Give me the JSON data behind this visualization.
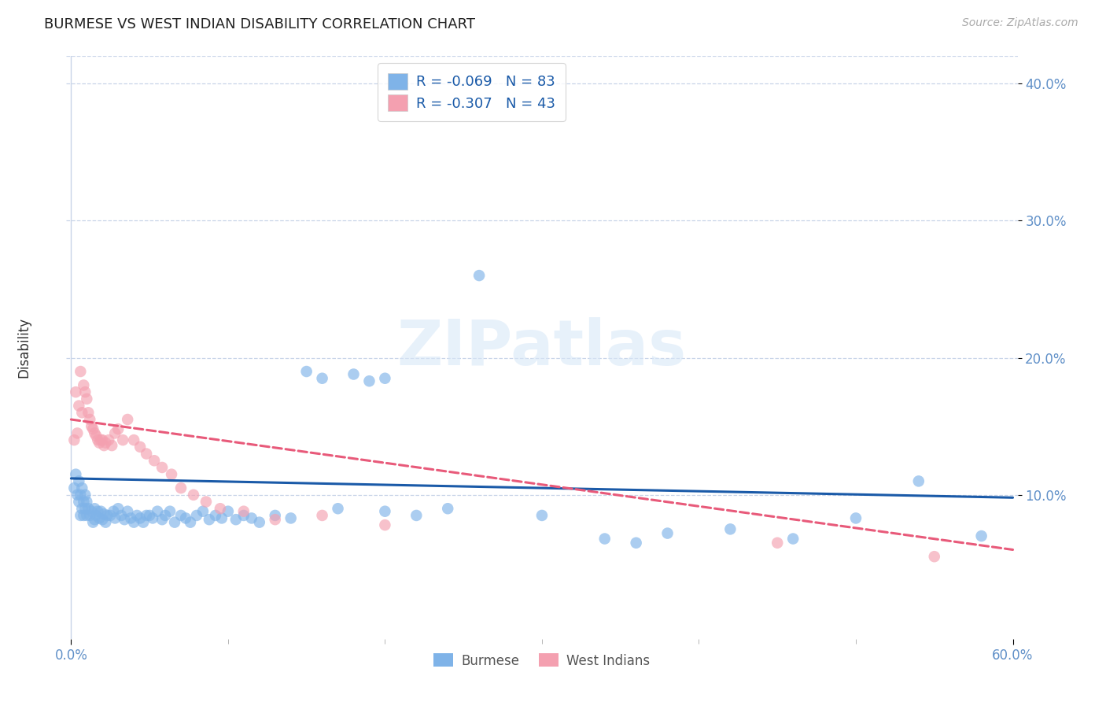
{
  "title": "BURMESE VS WEST INDIAN DISABILITY CORRELATION CHART",
  "source": "Source: ZipAtlas.com",
  "ylabel": "Disability",
  "watermark": "ZIPatlas",
  "burmese_color": "#7fb3e8",
  "west_indian_color": "#f4a0b0",
  "burmese_line_color": "#1a5aa8",
  "west_indian_line_color": "#e85a7a",
  "burmese_R": -0.069,
  "burmese_N": 83,
  "west_indian_R": -0.307,
  "west_indian_N": 43,
  "xlim": [
    0.0,
    0.6
  ],
  "ylim": [
    0.0,
    0.42
  ],
  "x_ticks_shown": [
    0.0,
    0.6
  ],
  "x_tick_labels_shown": [
    "0.0%",
    "60.0%"
  ],
  "x_ticks_minor": [
    0.1,
    0.2,
    0.3,
    0.4,
    0.5
  ],
  "y_ticks_shown": [
    0.1,
    0.2,
    0.3,
    0.4
  ],
  "y_tick_labels_shown": [
    "10.0%",
    "20.0%",
    "30.0%",
    "40.0%"
  ],
  "background_color": "#ffffff",
  "grid_color": "#c8d4e8",
  "axis_color": "#6090c8",
  "legend_color": "#1a5aa8",
  "burmese_scatter_x": [
    0.002,
    0.003,
    0.004,
    0.005,
    0.005,
    0.006,
    0.006,
    0.007,
    0.007,
    0.008,
    0.008,
    0.009,
    0.009,
    0.01,
    0.01,
    0.011,
    0.012,
    0.013,
    0.014,
    0.015,
    0.015,
    0.016,
    0.017,
    0.018,
    0.019,
    0.02,
    0.021,
    0.022,
    0.023,
    0.025,
    0.027,
    0.028,
    0.03,
    0.032,
    0.034,
    0.036,
    0.038,
    0.04,
    0.042,
    0.044,
    0.046,
    0.048,
    0.05,
    0.052,
    0.055,
    0.058,
    0.06,
    0.063,
    0.066,
    0.07,
    0.073,
    0.076,
    0.08,
    0.084,
    0.088,
    0.092,
    0.096,
    0.1,
    0.105,
    0.11,
    0.115,
    0.12,
    0.13,
    0.14,
    0.15,
    0.16,
    0.17,
    0.18,
    0.19,
    0.2,
    0.22,
    0.24,
    0.26,
    0.3,
    0.34,
    0.38,
    0.42,
    0.46,
    0.5,
    0.54,
    0.58,
    0.2,
    0.36
  ],
  "burmese_scatter_y": [
    0.105,
    0.115,
    0.1,
    0.095,
    0.11,
    0.085,
    0.1,
    0.09,
    0.105,
    0.095,
    0.085,
    0.1,
    0.09,
    0.085,
    0.095,
    0.09,
    0.085,
    0.088,
    0.08,
    0.09,
    0.082,
    0.085,
    0.088,
    0.083,
    0.088,
    0.082,
    0.086,
    0.08,
    0.085,
    0.085,
    0.088,
    0.083,
    0.09,
    0.085,
    0.082,
    0.088,
    0.083,
    0.08,
    0.085,
    0.083,
    0.08,
    0.085,
    0.085,
    0.083,
    0.088,
    0.082,
    0.085,
    0.088,
    0.08,
    0.085,
    0.083,
    0.08,
    0.085,
    0.088,
    0.082,
    0.085,
    0.083,
    0.088,
    0.082,
    0.085,
    0.083,
    0.08,
    0.085,
    0.083,
    0.19,
    0.185,
    0.09,
    0.188,
    0.183,
    0.088,
    0.085,
    0.09,
    0.26,
    0.085,
    0.068,
    0.072,
    0.075,
    0.068,
    0.083,
    0.11,
    0.07,
    0.185,
    0.065
  ],
  "west_indian_scatter_x": [
    0.002,
    0.003,
    0.004,
    0.005,
    0.006,
    0.007,
    0.008,
    0.009,
    0.01,
    0.011,
    0.012,
    0.013,
    0.014,
    0.015,
    0.016,
    0.017,
    0.018,
    0.019,
    0.02,
    0.021,
    0.022,
    0.024,
    0.026,
    0.028,
    0.03,
    0.033,
    0.036,
    0.04,
    0.044,
    0.048,
    0.053,
    0.058,
    0.064,
    0.07,
    0.078,
    0.086,
    0.095,
    0.11,
    0.13,
    0.16,
    0.2,
    0.45,
    0.55
  ],
  "west_indian_scatter_y": [
    0.14,
    0.175,
    0.145,
    0.165,
    0.19,
    0.16,
    0.18,
    0.175,
    0.17,
    0.16,
    0.155,
    0.15,
    0.148,
    0.145,
    0.143,
    0.14,
    0.138,
    0.14,
    0.14,
    0.136,
    0.138,
    0.14,
    0.136,
    0.145,
    0.148,
    0.14,
    0.155,
    0.14,
    0.135,
    0.13,
    0.125,
    0.12,
    0.115,
    0.105,
    0.1,
    0.095,
    0.09,
    0.088,
    0.082,
    0.085,
    0.078,
    0.065,
    0.055
  ],
  "burmese_line_x0": 0.0,
  "burmese_line_x1": 0.6,
  "burmese_line_y0": 0.112,
  "burmese_line_y1": 0.098,
  "west_indian_line_x0": 0.0,
  "west_indian_line_x1": 0.6,
  "west_indian_line_y0": 0.155,
  "west_indian_line_y1": 0.06
}
